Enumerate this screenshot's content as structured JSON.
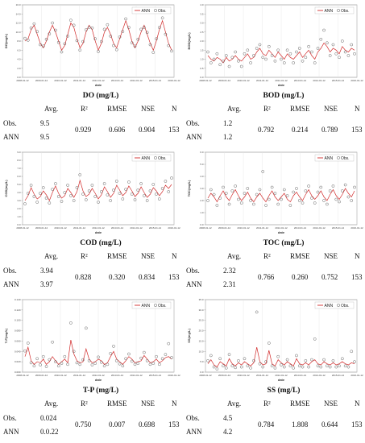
{
  "stats_headers": {
    "avg": "Avg.",
    "r2": "R²",
    "rmse": "RMSE",
    "nse": "NSE",
    "n": "N"
  },
  "row_labels": {
    "obs": "Obs.",
    "ann": "ANN"
  },
  "chart_data": [
    {
      "type": "line",
      "title": "DO (mg/L)",
      "xlabel": "date",
      "ylabel": "DO(mg/L)",
      "ylim": [
        0,
        16
      ],
      "yticks": [
        "0.0",
        "2.0",
        "4.0",
        "6.0",
        "8.0",
        "10.0",
        "12.0",
        "14.0",
        "16.0"
      ],
      "xticks": [
        "2008-01-12",
        "2009-01-12",
        "2010-01-12",
        "2011-01-12",
        "2012-01-12",
        "2013-01-12",
        "2014-01-12",
        "2015-01-12",
        "2016-01-12"
      ],
      "legend": {
        "position": "top-right",
        "items": [
          "ANN",
          "Obs."
        ]
      },
      "series": [
        {
          "name": "ANN",
          "kind": "line",
          "color": "#d22a2a",
          "values": [
            8.0,
            8.5,
            10.5,
            11.5,
            9.5,
            7.5,
            6.5,
            8.0,
            10.0,
            11.5,
            10.0,
            8.0,
            6.0,
            7.0,
            9.5,
            12.0,
            11.0,
            8.5,
            6.5,
            7.5,
            10.0,
            11.5,
            10.5,
            8.0,
            6.0,
            7.5,
            10.0,
            11.0,
            9.5,
            7.5,
            6.5,
            8.5,
            10.5,
            12.5,
            10.5,
            8.0,
            6.5,
            8.0,
            10.0,
            11.5,
            9.5,
            7.5,
            6.0,
            8.0,
            10.5,
            12.5,
            10.0,
            7.5,
            6.0
          ]
        },
        {
          "name": "Obs.",
          "kind": "scatter",
          "color": "#555555",
          "values": [
            8.6,
            8.2,
            10.9,
            11.8,
            10.1,
            7.2,
            6.9,
            8.4,
            9.6,
            12.0,
            10.4,
            7.7,
            5.6,
            7.4,
            9.1,
            12.6,
            11.5,
            8.1,
            6.0,
            7.9,
            10.5,
            11.0,
            10.9,
            8.5,
            5.7,
            7.9,
            10.6,
            11.6,
            9.1,
            7.0,
            6.1,
            8.9,
            10.1,
            12.9,
            11.0,
            7.6,
            6.9,
            8.4,
            10.6,
            11.0,
            9.9,
            7.2,
            5.5,
            8.5,
            11.0,
            13.1,
            9.5,
            7.0,
            5.8
          ]
        }
      ],
      "stats": {
        "obs_avg": "9.5",
        "ann_avg": "9.5",
        "r2": "0.929",
        "rmse": "0.606",
        "nse": "0.904",
        "n": "153"
      }
    },
    {
      "type": "line",
      "title": "BOD (mg/L)",
      "xlabel": "date",
      "ylabel": "BOD(mg/L)",
      "ylim": [
        0,
        4
      ],
      "yticks": [
        "0.0",
        "0.5",
        "1.0",
        "1.5",
        "2.0",
        "2.5",
        "3.0",
        "3.5",
        "4.0"
      ],
      "xticks": [
        "2008-01-12",
        "2009-01-12",
        "2010-01-12",
        "2011-01-12",
        "2012-01-12",
        "2013-01-12",
        "2014-01-12",
        "2015-01-12",
        "2016-01-12"
      ],
      "legend": {
        "position": "top-right",
        "items": [
          "ANN",
          "Obs."
        ]
      },
      "series": [
        {
          "name": "ANN",
          "kind": "line",
          "color": "#d22a2a",
          "values": [
            1.2,
            1.0,
            0.9,
            1.1,
            1.0,
            0.8,
            1.1,
            0.9,
            1.0,
            1.2,
            1.0,
            0.9,
            1.1,
            1.3,
            1.0,
            1.1,
            1.4,
            1.6,
            1.3,
            1.2,
            1.5,
            1.3,
            1.1,
            1.4,
            1.2,
            1.0,
            1.3,
            1.1,
            1.0,
            1.2,
            1.4,
            1.1,
            1.3,
            1.5,
            1.2,
            1.0,
            1.4,
            1.6,
            1.9,
            1.7,
            1.4,
            1.6,
            1.5,
            1.3,
            1.7,
            1.5,
            1.4,
            1.6,
            1.5
          ]
        },
        {
          "name": "Obs.",
          "kind": "scatter",
          "color": "#555555",
          "values": [
            1.4,
            0.8,
            1.0,
            1.3,
            0.7,
            0.9,
            1.2,
            0.6,
            1.1,
            1.4,
            0.9,
            0.6,
            1.3,
            1.5,
            0.8,
            1.2,
            1.6,
            1.8,
            1.1,
            1.0,
            1.7,
            1.2,
            0.9,
            1.5,
            1.0,
            0.8,
            1.5,
            1.3,
            0.8,
            1.4,
            1.6,
            0.9,
            1.1,
            1.7,
            1.4,
            0.8,
            1.6,
            2.1,
            2.6,
            1.9,
            1.2,
            1.8,
            1.3,
            1.1,
            2.0,
            1.4,
            1.2,
            1.8,
            1.3
          ]
        }
      ],
      "stats": {
        "obs_avg": "1.2",
        "ann_avg": "1.2",
        "r2": "0.792",
        "rmse": "0.214",
        "nse": "0.789",
        "n": "153"
      }
    },
    {
      "type": "line",
      "title": "COD (mg/L)",
      "xlabel": "date",
      "ylabel": "COD(mg/L)",
      "ylim": [
        0,
        9
      ],
      "yticks": [
        "0.0",
        "1.0",
        "2.0",
        "3.0",
        "4.0",
        "5.0",
        "6.0",
        "7.0",
        "8.0",
        "9.0"
      ],
      "xticks": [
        "2008-01-12",
        "2009-01-12",
        "2010-01-12",
        "2011-01-12",
        "2012-01-12",
        "2013-01-12",
        "2014-01-12",
        "2015-01-12",
        "2016-01-12"
      ],
      "legend": {
        "position": "top-right",
        "items": [
          "ANN",
          "Obs."
        ]
      },
      "series": [
        {
          "name": "ANN",
          "kind": "line",
          "color": "#d22a2a",
          "values": [
            3.0,
            3.6,
            4.6,
            3.8,
            3.2,
            3.5,
            4.2,
            3.7,
            3.0,
            4.0,
            4.8,
            3.9,
            3.3,
            3.6,
            4.5,
            4.0,
            3.4,
            4.1,
            5.5,
            4.2,
            3.5,
            3.8,
            4.5,
            3.9,
            3.2,
            3.7,
            4.7,
            4.1,
            3.4,
            3.9,
            4.9,
            4.3,
            3.6,
            4.0,
            4.8,
            4.2,
            3.5,
            3.9,
            4.7,
            4.0,
            3.4,
            3.8,
            4.6,
            4.2,
            3.6,
            4.1,
            4.9,
            4.5,
            5.0
          ]
        },
        {
          "name": "Obs.",
          "kind": "scatter",
          "color": "#555555",
          "values": [
            2.6,
            3.9,
            4.9,
            3.5,
            2.8,
            3.9,
            4.6,
            3.3,
            2.7,
            4.4,
            5.1,
            3.5,
            2.9,
            4.0,
            4.9,
            3.6,
            3.0,
            4.6,
            6.2,
            3.8,
            3.1,
            4.2,
            4.9,
            3.5,
            2.8,
            4.1,
            5.1,
            3.7,
            3.0,
            4.3,
            5.4,
            3.9,
            3.2,
            4.4,
            5.3,
            3.8,
            3.1,
            4.3,
            5.1,
            3.6,
            3.0,
            4.2,
            5.0,
            3.8,
            3.2,
            4.5,
            5.4,
            4.1,
            5.8
          ]
        }
      ],
      "stats": {
        "obs_avg": "3.94",
        "ann_avg": "3.97",
        "r2": "0.828",
        "rmse": "0.320",
        "nse": "0.834",
        "n": "153"
      }
    },
    {
      "type": "line",
      "title": "TOC (mg/L)",
      "xlabel": "date",
      "ylabel": "TOC(mg/L)",
      "ylim": [
        0,
        6
      ],
      "yticks": [
        "0.0",
        "1.0",
        "2.0",
        "3.0",
        "4.0",
        "5.0",
        "6.0"
      ],
      "xticks": [
        "2008-01-12",
        "2009-01-12",
        "2010-01-12",
        "2011-01-12",
        "2012-01-12",
        "2013-01-12",
        "2014-01-12",
        "2015-01-12",
        "2016-01-12"
      ],
      "legend": {
        "position": "top-right",
        "items": [
          "ANN",
          "Obs."
        ]
      },
      "series": [
        {
          "name": "ANN",
          "kind": "line",
          "color": "#d22a2a",
          "values": [
            2.2,
            2.6,
            2.3,
            1.9,
            2.4,
            2.8,
            2.3,
            2.0,
            2.5,
            2.9,
            2.4,
            2.0,
            2.3,
            2.7,
            2.2,
            1.9,
            2.3,
            2.6,
            2.2,
            1.9,
            2.4,
            2.8,
            2.3,
            2.0,
            2.3,
            2.6,
            2.1,
            1.9,
            2.4,
            2.7,
            2.3,
            2.0,
            2.5,
            2.9,
            2.4,
            2.1,
            2.4,
            2.8,
            2.3,
            2.0,
            2.5,
            2.9,
            2.4,
            2.1,
            2.5,
            3.0,
            2.6,
            2.3,
            2.8
          ]
        },
        {
          "name": "Obs.",
          "kind": "scatter",
          "color": "#555555",
          "values": [
            2.0,
            2.9,
            2.5,
            1.6,
            2.2,
            3.1,
            2.6,
            1.7,
            2.8,
            3.2,
            2.1,
            1.8,
            2.6,
            3.0,
            2.0,
            1.7,
            2.5,
            2.9,
            4.4,
            1.6,
            2.1,
            3.1,
            2.6,
            1.7,
            2.1,
            2.9,
            2.4,
            1.6,
            2.7,
            3.0,
            2.0,
            1.8,
            2.8,
            3.2,
            2.2,
            1.8,
            2.7,
            3.1,
            2.0,
            1.7,
            2.8,
            3.2,
            2.1,
            1.9,
            2.8,
            3.3,
            2.3,
            2.0,
            3.1
          ]
        }
      ],
      "stats": {
        "obs_avg": "2.32",
        "ann_avg": "2.31",
        "r2": "0.766",
        "rmse": "0.260",
        "nse": "0.752",
        "n": "153"
      }
    },
    {
      "type": "line",
      "title": "T-P (mg/L)",
      "xlabel": "date",
      "ylabel": "T-P(mg/L)",
      "ylim": [
        0,
        0.14
      ],
      "yticks": [
        "0.000",
        "0.020",
        "0.040",
        "0.060",
        "0.080",
        "0.100",
        "0.120",
        "0.140"
      ],
      "xticks": [
        "2008-01-12",
        "2009-01-12",
        "2010-01-12",
        "2011-01-12",
        "2012-01-12",
        "2013-01-12",
        "2014-01-12",
        "2015-01-12",
        "2016-01-12"
      ],
      "legend": {
        "position": "top-right",
        "items": [
          "ANN",
          "Obs."
        ]
      },
      "series": [
        {
          "name": "ANN",
          "kind": "line",
          "color": "#d22a2a",
          "values": [
            0.03,
            0.048,
            0.022,
            0.015,
            0.02,
            0.018,
            0.025,
            0.015,
            0.02,
            0.03,
            0.022,
            0.015,
            0.02,
            0.025,
            0.018,
            0.062,
            0.035,
            0.022,
            0.018,
            0.02,
            0.045,
            0.025,
            0.018,
            0.02,
            0.025,
            0.022,
            0.015,
            0.018,
            0.03,
            0.04,
            0.025,
            0.02,
            0.015,
            0.022,
            0.03,
            0.025,
            0.018,
            0.02,
            0.022,
            0.032,
            0.025,
            0.018,
            0.02,
            0.025,
            0.018,
            0.022,
            0.028,
            0.03,
            0.025
          ]
        },
        {
          "name": "Obs.",
          "kind": "scatter",
          "color": "#555555",
          "values": [
            0.041,
            0.056,
            0.018,
            0.012,
            0.026,
            0.014,
            0.03,
            0.011,
            0.024,
            0.058,
            0.02,
            0.012,
            0.017,
            0.03,
            0.015,
            0.095,
            0.04,
            0.018,
            0.015,
            0.024,
            0.085,
            0.022,
            0.014,
            0.017,
            0.029,
            0.019,
            0.012,
            0.015,
            0.036,
            0.05,
            0.022,
            0.016,
            0.012,
            0.026,
            0.035,
            0.021,
            0.015,
            0.017,
            0.027,
            0.038,
            0.022,
            0.015,
            0.017,
            0.03,
            0.015,
            0.026,
            0.034,
            0.055,
            0.028
          ]
        }
      ],
      "stats": {
        "obs_avg": "0.024",
        "ann_avg": "0.0.22",
        "r2": "0.750",
        "rmse": "0.007",
        "nse": "0.698",
        "n": "153"
      }
    },
    {
      "type": "line",
      "title": "SS (mg/L)",
      "xlabel": "date",
      "ylabel": "SS(mg/L)",
      "ylim": [
        0,
        35
      ],
      "yticks": [
        "0.0",
        "5.0",
        "10.0",
        "15.0",
        "20.0",
        "25.0",
        "30.0",
        "35.0"
      ],
      "xticks": [
        "2008-01-12",
        "2009-01-12",
        "2010-01-12",
        "2011-01-12",
        "2012-01-12",
        "2013-01-12",
        "2014-01-12",
        "2015-01-12",
        "2016-01-12"
      ],
      "legend": {
        "position": "top-right",
        "items": [
          "ANN",
          "Obs."
        ]
      },
      "series": [
        {
          "name": "ANN",
          "kind": "line",
          "color": "#d22a2a",
          "values": [
            4.0,
            6.0,
            3.5,
            2.5,
            5.0,
            4.0,
            3.0,
            6.5,
            4.0,
            3.0,
            4.5,
            3.5,
            5.0,
            4.0,
            3.0,
            4.5,
            12.0,
            5.0,
            3.5,
            4.0,
            10.5,
            4.0,
            3.0,
            6.0,
            4.5,
            3.5,
            5.0,
            4.0,
            3.0,
            6.5,
            4.0,
            3.5,
            4.5,
            3.5,
            5.0,
            6.0,
            4.0,
            3.5,
            5.0,
            4.0,
            3.5,
            4.5,
            3.5,
            4.0,
            5.0,
            4.0,
            3.5,
            4.5,
            4.0
          ]
        },
        {
          "name": "Obs.",
          "kind": "scatter",
          "color": "#555555",
          "values": [
            5.5,
            8.0,
            2.5,
            1.5,
            6.5,
            3.0,
            2.0,
            8.5,
            3.0,
            2.2,
            5.5,
            2.5,
            6.5,
            3.0,
            2.0,
            5.5,
            29.0,
            4.0,
            2.5,
            5.0,
            14.0,
            3.0,
            2.0,
            7.5,
            3.5,
            2.5,
            6.0,
            3.0,
            2.0,
            8.0,
            3.0,
            2.5,
            5.5,
            2.5,
            6.0,
            16.0,
            3.0,
            2.5,
            6.0,
            3.0,
            2.5,
            5.5,
            2.5,
            3.0,
            6.5,
            3.0,
            2.5,
            10.0,
            5.0
          ]
        }
      ],
      "stats": {
        "obs_avg": "4.5",
        "ann_avg": "4.2",
        "r2": "0.784",
        "rmse": "1.808",
        "nse": "0.644",
        "n": "153"
      }
    }
  ]
}
